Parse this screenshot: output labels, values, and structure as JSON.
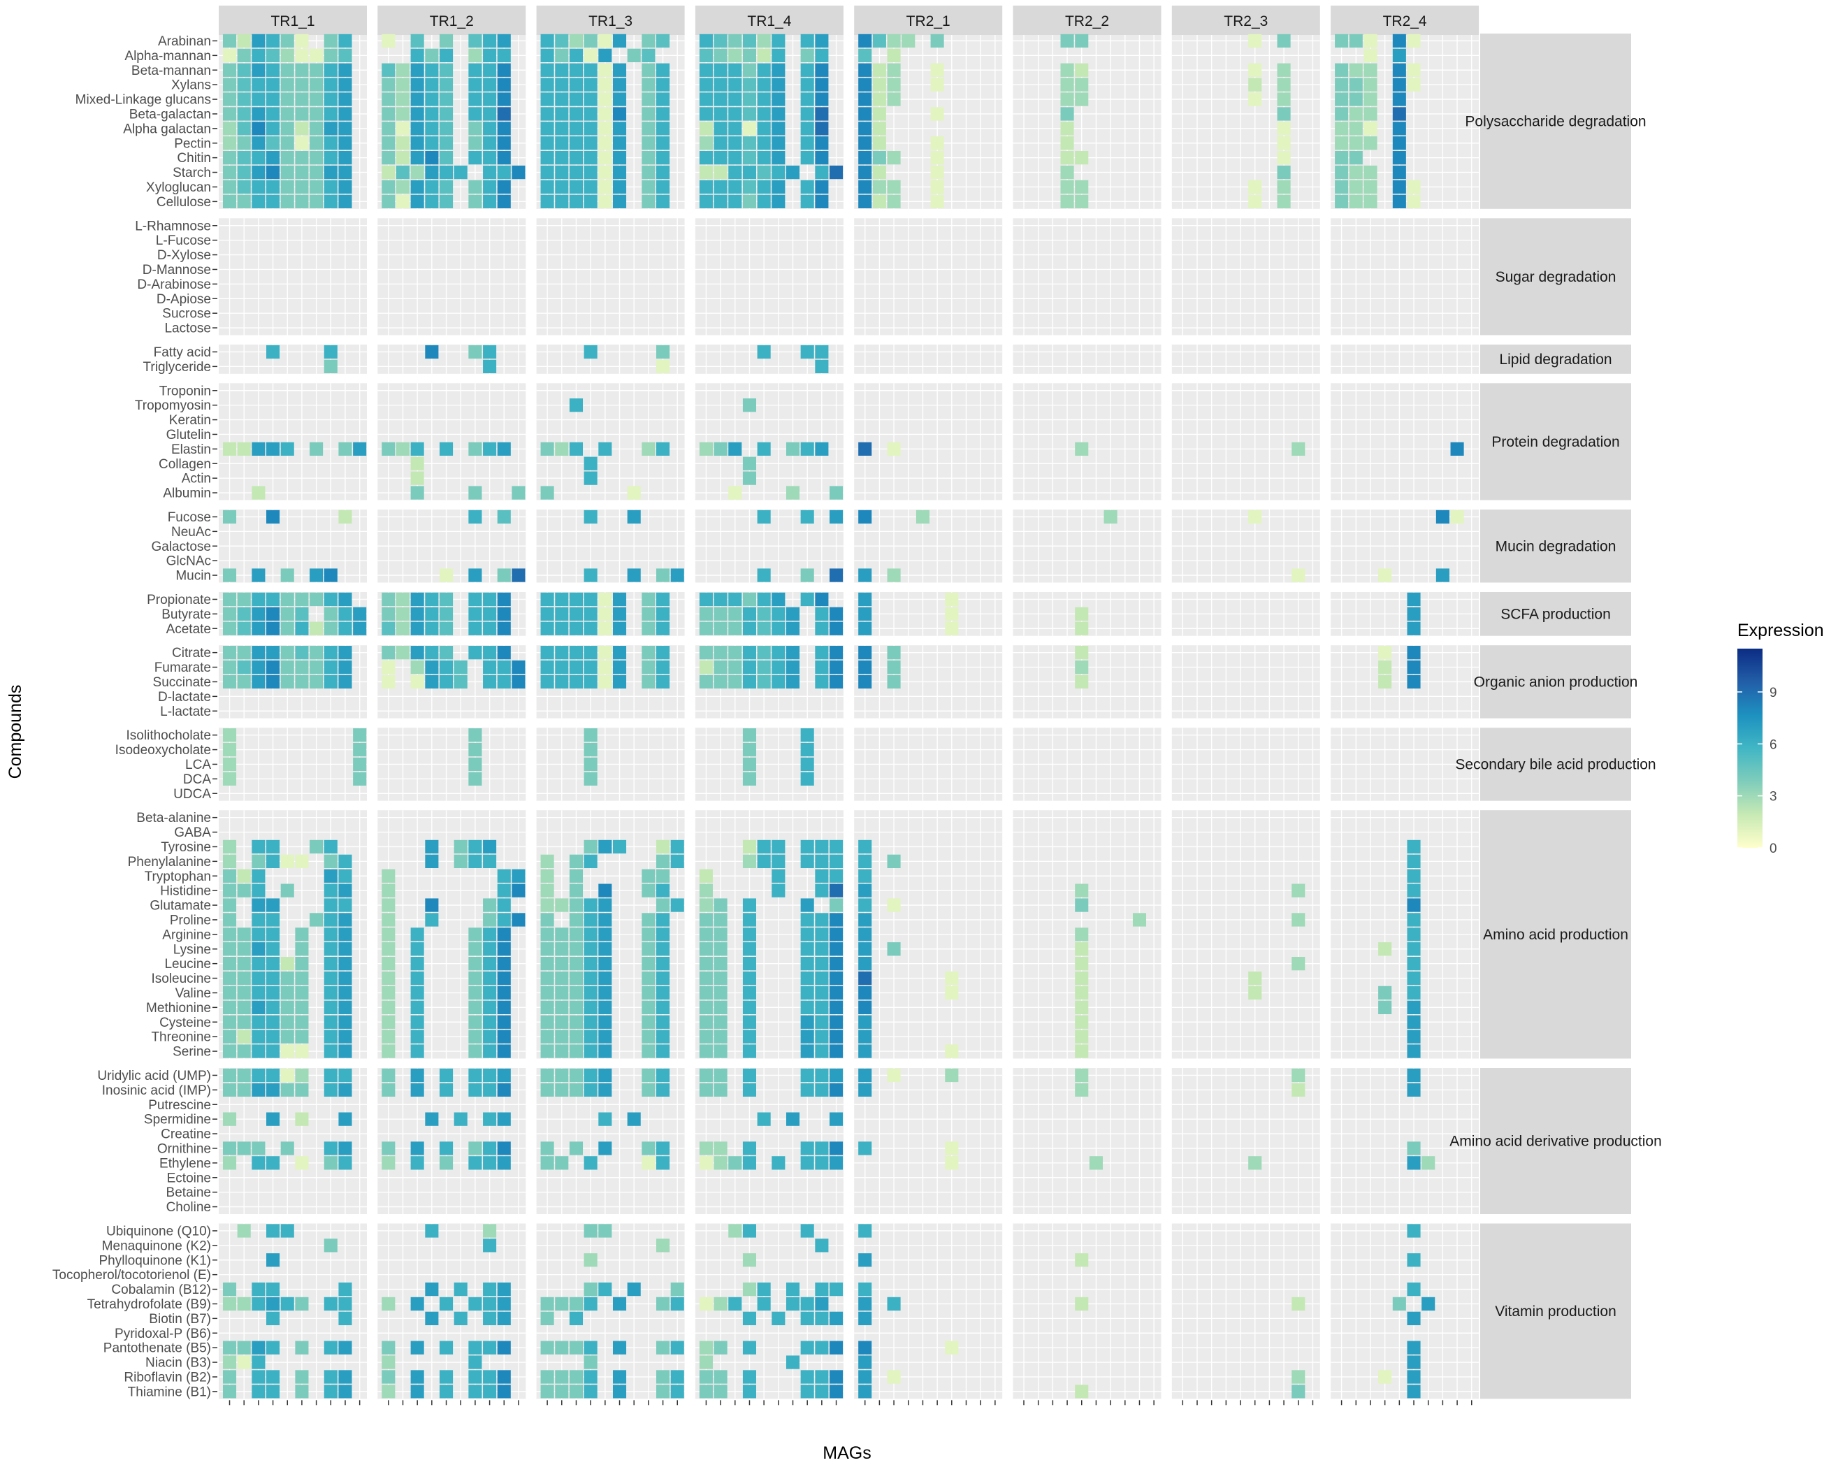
{
  "chart_data": {
    "type": "heatmap",
    "xlabel": "MAGs",
    "ylabel": "Compounds",
    "legend": {
      "title": "Expression",
      "ticks": [
        0,
        3,
        6,
        9
      ],
      "min": 0,
      "max": 11.5,
      "position": "right"
    },
    "colors": {
      "low": "#ffffcc",
      "c1": "#c7e9b4",
      "c2": "#7fcdbb",
      "c3": "#41b6c4",
      "c4": "#1d91c0",
      "c5": "#225ea8",
      "high": "#0c2c84",
      "panel": "#ebebeb",
      "strip": "#d9d9d9"
    },
    "facets": [
      "TR1_1",
      "TR1_2",
      "TR1_3",
      "TR1_4",
      "TR2_1",
      "TR2_2",
      "TR2_3",
      "TR2_4"
    ],
    "mags_per_facet": 10,
    "groups": [
      {
        "name": "Polysaccharide degradation",
        "compounds": [
          "Arabinan",
          "Alpha-mannan",
          "Beta-mannan",
          "Xylans",
          "Mixed-Linkage glucans",
          "Beta-galactan",
          "Alpha galactan",
          "Pectin",
          "Chitin",
          "Starch",
          "Xyloglucan",
          "Cellulose"
        ]
      },
      {
        "name": "Sugar degradation",
        "compounds": [
          "L-Rhamnose",
          "L-Fucose",
          "D-Xylose",
          "D-Mannose",
          "D-Arabinose",
          "D-Apiose",
          "Sucrose",
          "Lactose"
        ]
      },
      {
        "name": "Lipid degradation",
        "compounds": [
          "Fatty acid",
          "Triglyceride"
        ]
      },
      {
        "name": "Protein degradation",
        "compounds": [
          "Troponin",
          "Tropomyosin",
          "Keratin",
          "Glutelin",
          "Elastin",
          "Collagen",
          "Actin",
          "Albumin"
        ]
      },
      {
        "name": "Mucin degradation",
        "compounds": [
          "Fucose",
          "NeuAc",
          "Galactose",
          "GlcNAc",
          "Mucin"
        ]
      },
      {
        "name": "SCFA production",
        "compounds": [
          "Propionate",
          "Butyrate",
          "Acetate"
        ]
      },
      {
        "name": "Organic anion production",
        "compounds": [
          "Citrate",
          "Fumarate",
          "Succinate",
          "D-lactate",
          "L-lactate"
        ]
      },
      {
        "name": "Secondary bile acid production",
        "compounds": [
          "Isolithocholate",
          "Isodeoxycholate",
          "LCA",
          "DCA",
          "UDCA"
        ]
      },
      {
        "name": "Amino acid production",
        "compounds": [
          "Beta-alanine",
          "GABA",
          "Tyrosine",
          "Phenylalanine",
          "Tryptophan",
          "Histidine",
          "Glutamate",
          "Proline",
          "Arginine",
          "Lysine",
          "Leucine",
          "Isoleucine",
          "Valine",
          "Methionine",
          "Cysteine",
          "Threonine",
          "Serine"
        ]
      },
      {
        "name": "Amino acid derivative production",
        "compounds": [
          "Uridylic acid (UMP)",
          "Inosinic acid (IMP)",
          "Putrescine",
          "Spermidine",
          "Creatine",
          "Ornithine",
          "Ethylene",
          "Ectoine",
          "Betaine",
          "Choline"
        ]
      },
      {
        "name": "Vitamin production",
        "compounds": [
          "Ubiquinone (Q10)",
          "Menaquinone (K2)",
          "Phylloquinone (K1)",
          "Tocopherol/tocotorienol (E)",
          "Cobalamin (B12)",
          "Tetrahydrofolate (B9)",
          "Biotin (B7)",
          "Pyridoxal-P (B6)",
          "Pantothenate (B5)",
          "Niacin (B3)",
          "Riboflavin (B2)",
          "Thiamine (B1)"
        ]
      }
    ],
    "rows": {
      "Arabinan": [
        "4,2,7,6,4,1,,4,6",
        "1,,5,,4,,5,6,7",
        "6,5,3,4,1,7,,4,5",
        "6,5,4,5,3,6,,6,7",
        "8,5,3,3,,4",
        ",,,4,4",
        ",,,,,1,,4",
        "4,4,1,,8,1"
      ],
      "Alpha-mannan": [
        "1,4,6,5,3,1,1,4,5",
        ",,6,4,6,,3,6,6",
        "6,4,6,1,7,,4,5",
        "5,4,3,4,2,6,,4,6",
        "5,,2,,,",
        "",
        ",,,,,,,",
        ",,1,,7"
      ],
      "Beta-mannan": [
        "4,5,7,6,4,4,4,6,7",
        "5,3,7,6,5,,6,6,8",
        "6,6,6,6,1,7,,4,6",
        "6,6,6,4,6,7,,6,8",
        "8,2,3,,,1",
        ",,,3,2",
        ",,,,,1,,3",
        "4,3,3,,8,1"
      ],
      "Xylans": [
        "4,5,6,6,4,4,4,6,7",
        "4,3,7,6,5,,6,6,8",
        "6,6,6,6,1,7,,4,6",
        "6,6,6,5,6,7,,6,8",
        "8,2,3,,,1",
        ",,,3,3",
        ",,,,,2,,3",
        "4,4,3,,8,1"
      ],
      "Mixed-Linkage glucans": [
        "4,5,6,6,4,4,4,6,7",
        "4,3,7,6,5,,6,6,8",
        "6,6,6,6,1,7,,4,6",
        "6,6,6,5,6,7,,6,8",
        "8,2,3,,,",
        ",,,3,3",
        ",,,,,1,,3",
        "4,4,3,,8"
      ],
      "Beta-galactan": [
        "4,5,7,6,4,4,4,6,7",
        "4,3,7,6,5,,6,6,9",
        "6,6,6,6,1,8,,4,6",
        "6,6,6,5,6,7,,6,9",
        "8,2,,,,1",
        ",,,4,",
        ",,,,,,,4",
        "4,3,3,,9"
      ],
      "Alpha galactan": [
        "3,5,8,6,4,2,4,7,7",
        "4,1,7,6,5,,4,6,8",
        "6,6,6,6,1,7,,4,6",
        "2,6,6,1,6,7,,6,9",
        "8,2,,,,",
        ",,,2,",
        ",,,,,,,1",
        "3,3,1,,8"
      ],
      "Pectin": [
        "3,4,7,5,4,1,4,6,7",
        "4,2,7,6,5,,4,6,8",
        "6,6,6,6,1,7,,4,6",
        "3,6,6,5,6,7,,6,8",
        "8,2,,,,1",
        ",,,2,",
        ",,,,,,,1",
        "3,3,3,,8"
      ],
      "Chitin": [
        "4,5,6,7,4,4,4,6,7",
        "4,2,7,8,5,,6,6,8",
        "6,6,6,6,1,7,,4,6",
        "6,6,6,5,6,7,,6,8",
        "8,4,3,,,1",
        ",,,2,2",
        ",,,,,,,1",
        "4,4,,,8"
      ],
      "Starch": [
        "4,5,7,8,4,4,4,7,7",
        "2,5,3,7,6,6,,6,6,8",
        "6,6,6,6,1,7,,4,6",
        "2,2,6,6,5,6,7,,6,9",
        "8,2,,,,1",
        ",,,3,",
        ",,,,,,,4",
        "4,3,3,,8"
      ],
      "Xyloglucan": [
        "4,5,6,6,4,4,4,6,7",
        "4,3,7,6,5,,4,6,8",
        "6,6,6,6,1,7,,4,6",
        "6,6,6,5,6,7,,6,8",
        "8,3,3,,,1",
        ",,,3,3",
        ",,,,,1,,3",
        "4,3,3,,8,1"
      ],
      "Cellulose": [
        "4,4,6,6,4,4,4,6,7",
        "4,1,7,6,5,,4,6,8",
        "6,6,6,6,1,7,,4,6",
        "6,6,6,4,6,7,,6,8",
        "8,2,3,,,1",
        ",,,3,3",
        ",,,,,1,,3",
        "4,3,3,,8,1"
      ],
      "Fatty acid": [
        ",,,6,,,,6",
        ",,,8,,,4,6",
        ",,,6,,,,,4",
        ",,,,6,,,6,6",
        "",
        "",
        "",
        ""
      ],
      "Triglyceride": [
        ",,,,,,,4",
        ",,,,,,,6",
        ",,,,,,,,1",
        ",,,,,,,,6",
        "",
        "",
        "",
        ""
      ],
      "Tropomyosin": [
        "",
        "",
        ",,6",
        ",,,4",
        "",
        "",
        "",
        ""
      ],
      "Elastin": [
        "2,2,7,7,6,,4,,4,7",
        "4,3,6,,6,,4,6,7",
        "4,3,6,,6,,,3,6",
        "3,4,7,,6,,4,6,7",
        "9,,1",
        ",,,,3",
        ",,,,,,,,3",
        ",,,,,,,,8"
      ],
      "Collagen": [
        "",
        ",,2",
        ",,,6",
        ",,,4",
        "",
        "",
        "",
        ""
      ],
      "Actin": [
        "",
        ",,2",
        ",,,6",
        ",,,4",
        "",
        "",
        "",
        ""
      ],
      "Albumin": [
        ",,2",
        ",,4,,,,4,,,4",
        "4,,,,,,1",
        ",,1,,,,3,,,4",
        "",
        "",
        "",
        ""
      ],
      "Fucose": [
        "4,,,8,,,,,2",
        ",,,,,,6,,5",
        ",,,6,,,7",
        ",,,,6,,,6,,7",
        "8,,,,3",
        ",,,,,,3",
        ",,,,,1",
        ",,,,,,,8,1"
      ],
      "Mucin": [
        "4,,7,,4,,7,8",
        ",,,,1,,7,,4,9",
        ",,,6,,,7,,4,7",
        ",,,,6,,,4,,9",
        "7,,3",
        "",
        ",,,,,,,,1",
        ",,,1,,,,7"
      ],
      "Propionate": [
        "4,4,6,6,4,4,4,6,7",
        "4,3,7,6,5,,6,6,8",
        "6,6,6,6,1,7,,4,6",
        "6,6,6,4,6,7,,6,8",
        "7,,,,,,1",
        "",
        "",
        ",,,,,7"
      ],
      "Butyrate": [
        "4,5,7,8,4,5,,4,6,7",
        "4,3,7,6,5,,6,6,8",
        "6,6,6,6,1,7,,4,6",
        "4,4,4,6,5,6,7,,6,8",
        "7,,,,,,1",
        ",,,,2",
        "",
        ",,,,,7"
      ],
      "Acetate": [
        "4,5,7,8,4,6,2,4,6,7",
        "5,3,7,6,5,,6,6,8",
        "6,6,6,6,1,7,,4,6",
        "4,4,4,6,5,6,7,,6,8",
        "7,,,,,,1",
        ",,,,2",
        "",
        ",,,,,7"
      ],
      "Citrate": [
        "4,4,7,7,4,5,4,6,7",
        "4,3,7,6,5,,6,6,8",
        "6,6,6,6,1,7,,4,6",
        "4,4,4,6,5,6,7,,6,8",
        "8,,4",
        ",,,,2",
        "",
        ",,,1,,8"
      ],
      "Fumarate": [
        "4,5,7,8,4,4,4,6,7",
        "1,,3,7,6,5,,6,6,8",
        "6,6,6,6,1,7,,4,6",
        "2,4,4,6,5,6,7,,6,8",
        "8,,4",
        ",,,,3",
        "",
        ",,,2,,8"
      ],
      "Succinate": [
        "4,4,7,8,4,4,4,6,7",
        "1,,1,7,6,5,,6,6,8",
        "6,6,6,6,1,7,,4,6",
        "4,4,4,6,5,6,7,,6,8",
        "8,,4",
        ",,,,2",
        "",
        ",,,2,,8"
      ],
      "Isolithocholate": [
        "3,,,,,,,,,4",
        ",,,,,,4",
        ",,,4",
        ",,,4,,,,6",
        "",
        "",
        "",
        ""
      ],
      "Isodeoxycholate": [
        "3,,,,,,,,,4",
        ",,,,,,4",
        ",,,4",
        ",,,4,,,,6",
        "",
        "",
        "",
        ""
      ],
      "LCA": [
        "3,,,,,,,,,4",
        ",,,,,,4",
        ",,,4",
        ",,,4,,,,6",
        "",
        "",
        "",
        ""
      ],
      "DCA": [
        "3,,,,,,,,,4",
        ",,,,,,4",
        ",,,4",
        ",,,4,,,,6",
        "",
        "",
        "",
        ""
      ],
      "Tyrosine": [
        "3,,6,6,,,4,6",
        ",,,7,,4,6,7",
        ",,,4,7,6,,,2,6",
        ",,,2,6,6,,6,6,6",
        "6",
        "",
        "",
        ",,,,,6"
      ],
      "Phenylalanine": [
        "3,,4,6,1,1,,4,6",
        ",,,7,,4,6,6",
        "3,,4,6,,,,,4,6",
        ",,,3,6,6,,6,6,6",
        "6,,4",
        "",
        "",
        ",,,,,6"
      ],
      "Tryptophan": [
        "4,2,6,,,,,7,6",
        "3,,,,,,,,6,7",
        "3,,4,,,,,4,4",
        "2,,,,,6,,,6,6",
        "6",
        "",
        "",
        ",,,,,6"
      ],
      "Histidine": [
        "4,4,6,,4,,,6,7",
        "3,,,,,,,,6,8",
        "3,,4,,8,,,4,6",
        "3,,,,,6,,,6,9",
        "7",
        ",,,,3",
        ",,,,,,,,3",
        ",,,,,6"
      ],
      "Glutamate": [
        "4,,7,7,,,,6,6",
        "3,,,8,,,,4,6",
        "3,3,4,6,7,,,,4,6",
        "3,4,,6,,,,7,,4",
        "6,,1",
        ",,,,4",
        "",
        ",,,,,8"
      ],
      "Proline": [
        "4,,6,6,,,4,6,7",
        "3,,,6,,,,4,6,8",
        "4,,4,6,7,,,4,6",
        "4,4,,6,,,,6,6,8",
        "7",
        ",,,,,,,,3",
        ",,,,,,,,3",
        ",,,,,6"
      ],
      "Arginine": [
        "4,4,6,6,,4,,6,7",
        "3,,6,,,,4,6,8",
        "4,4,4,6,7,,,4,6",
        "4,4,,6,,,,6,6,8",
        "7",
        ",,,,3",
        "",
        ",,,,,6"
      ],
      "Lysine": [
        "4,4,7,6,,4,,6,7",
        "3,,6,,,,4,6,8",
        "4,4,4,6,7,,,4,6",
        "4,4,,6,,,,6,6,8",
        "7,,4",
        ",,,,2",
        "",
        ",,,2,,6"
      ],
      "Leucine": [
        "4,4,6,6,2,4,,6,7",
        "3,,6,,,,4,6,8",
        "4,4,4,6,7,,,4,6",
        "4,4,,6,,,,6,6,8",
        "7",
        ",,,,2",
        ",,,,,,,,3",
        ",,,,,6"
      ],
      "Isoleucine": [
        "4,4,6,6,4,4,,6,7",
        "3,,6,,,,4,6,8",
        "4,4,4,6,7,,,4,6",
        "4,4,,6,,,,6,6,8",
        "9,,,,,,1",
        ",,,,2",
        ",,,,,2",
        ",,,,,6"
      ],
      "Valine": [
        "4,4,6,6,4,4,,6,7",
        "3,,6,,,,4,6,8",
        "4,4,4,6,7,,,4,6",
        "4,4,,6,,,,6,6,8",
        "8,,,,,,1",
        ",,,,2",
        ",,,,,2",
        ",,,4,,6"
      ],
      "Methionine": [
        "4,4,7,6,4,4,,6,7",
        "3,,6,,,,4,6,8",
        "4,4,4,6,7,,,4,6",
        "4,4,,6,,,,6,6,8",
        "8",
        ",,,,2",
        "",
        ",,,4,,7"
      ],
      "Cysteine": [
        "4,4,6,6,4,4,,6,7",
        "3,,6,,,,4,6,8",
        "4,4,4,6,7,,,4,6",
        "4,4,,6,,,,7,6,8",
        "7",
        ",,,,2",
        "",
        ",,,,,7"
      ],
      "Threonine": [
        "4,2,6,6,4,4,,6,7",
        "3,,6,,,,4,6,8",
        "4,4,4,6,7,,,4,6",
        "4,4,,6,,,,7,6,8",
        "7",
        ",,,,2",
        "",
        ",,,,,7"
      ],
      "Serine": [
        "4,4,6,6,1,1,,6,7",
        "3,,6,,,,4,6,8",
        "4,4,4,6,7,,,4,6",
        "4,4,,6,,,,7,6,8",
        "7,,,,,,1",
        ",,,,2",
        "",
        ",,,,,7"
      ],
      "Uridylic acid (UMP)": [
        "4,4,6,6,1,3,,6,6",
        "4,,7,,6,,6,6,7",
        "4,4,4,6,7,,,4,6",
        "4,4,,6,,,,6,6,7",
        "7,,1,,,,3",
        ",,,,3",
        ",,,,,,,,3",
        ",,,,,7"
      ],
      "Inosinic acid (IMP)": [
        "4,4,7,7,4,4,,6,7",
        "4,,7,,6,,6,6,8",
        "4,4,4,6,7,,,4,6",
        "4,4,,6,,,,6,6,8",
        "7",
        ",,,,3",
        ",,,,,,,,2",
        ",,,,,7"
      ],
      "Spermidine": [
        "3,,,7,,2,,,7",
        ",,,7,,6,,6,7",
        ",,,,6,,7,,,,6",
        ",,,,6,,7,,,7,8",
        "",
        "",
        "",
        ""
      ],
      "Ornithine": [
        "4,4,4,,4,,,6,7",
        "4,,7,,6,,4,6,8",
        "4,,4,,7,,,4,6",
        "3,3,,6,,,,6,6,8",
        "6,,,,,,1",
        "",
        "",
        ",,,,,4"
      ],
      "Ethylene": [
        "3,,6,6,,1,,4,6",
        "3,,6,,4,,6,6,7",
        "4,4,,6,,,,1,6",
        "1,3,4,6,,6,,6,6,7",
        ",,,,,,1",
        ",,,,,3",
        ",,,,,3",
        ",,,,,7,3"
      ],
      "Ubiquinone (Q10)": [
        ",3,,6,6,,,,",
        ",,,6,,,,3",
        ",,,4,4,,,,",
        ",,3,6,,,,6",
        "6",
        "",
        "",
        ",,,,,6"
      ],
      "Menaquinone (K2)": [
        ",,,,,,,4",
        ",,,,,,,6",
        ",,,,,,,,3",
        ",,,,,,,,6",
        "",
        "",
        "",
        ""
      ],
      "Phylloquinone (K1)": [
        ",,,7",
        "",
        ",,,3",
        ",,,3",
        "7",
        ",,,,2",
        "",
        ",,,,,6"
      ],
      "Cobalamin (B12)": [
        "4,,6,6,,,,,6",
        ",,,7,,6,,6,7",
        ",,,4,6,,7,,,4,6",
        ",,,3,6,,6,,6,6,8",
        "6",
        "",
        "",
        ",,,,,6"
      ],
      "Tetrahydrofolate (B9)": [
        "3,3,6,7,6,4,,6,6",
        "3,,7,,6,,6,6,7",
        "4,4,4,6,,7,,,4,6",
        "1,3,6,,6,,6,6,7",
        "7,,6",
        ",,,,2",
        ",,,,,,,,2",
        ",,,,4,,7"
      ],
      "Biotin (B7)": [
        ",,,6,,,,,6",
        ",,,7,,6,,6,7",
        "4,,6",
        ",,,6,,6,,6,6,7",
        "7",
        "",
        "",
        ",,,,,7"
      ],
      "Pantothenate (B5)": [
        "4,4,7,6,,4,,6,7",
        "4,,7,,6,,6,6,8",
        "4,4,4,6,,7,,,4,6",
        "3,4,,6,,,,6,6,8",
        "8,,,,,,1",
        "",
        "",
        ",,,,,7"
      ],
      "Niacin (B3)": [
        "3,1,6",
        "3,,,,,,6",
        ",,,4",
        "3,,,,,,6",
        "7",
        "",
        "",
        ",,,,,7"
      ],
      "Riboflavin (B2)": [
        "4,,6,6,,4,,6,7",
        "4,,7,,6,,6,6,8",
        "4,4,4,6,,7,,,4,6",
        "4,4,,6,,,,6,6,8",
        "7,,1",
        "",
        ",,,,,,,,3",
        ",,,1,,7"
      ],
      "Thiamine (B1)": [
        "4,,6,6,,4,,6,7",
        "3,,7,,6,,6,6,8",
        "4,4,4,6,,7,,,4,6",
        "4,4,,6,,,,6,6,8",
        "7",
        ",,,,2",
        ",,,,,,,,4",
        ",,,,,7"
      ]
    }
  }
}
